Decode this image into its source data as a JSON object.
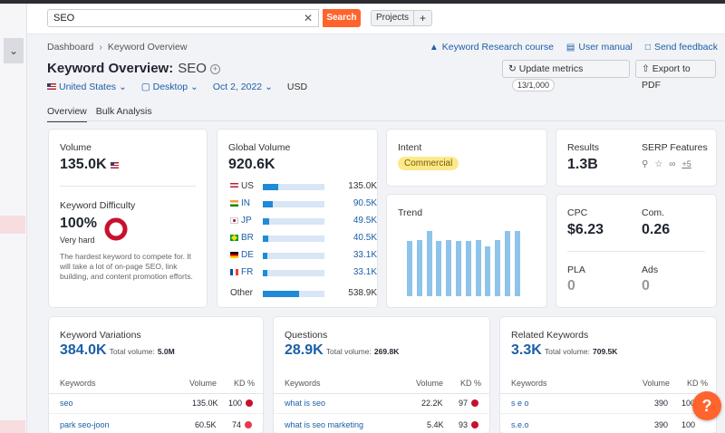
{
  "header": {
    "search_value": "SEO",
    "search_button": "Search",
    "projects_label": "Projects",
    "projects_add": "+"
  },
  "breadcrumb": {
    "root": "Dashboard",
    "current": "Keyword Overview"
  },
  "top_links": {
    "course": "Keyword Research course",
    "manual": "User manual",
    "feedback": "Send feedback"
  },
  "title": {
    "label": "Keyword Overview:",
    "keyword": "SEO"
  },
  "actions": {
    "update_label": "Update metrics",
    "update_count": "13/1,000",
    "export_label": "Export to PDF"
  },
  "filters": {
    "country": "United States",
    "device": "Desktop",
    "date": "Oct 2, 2022",
    "currency": "USD"
  },
  "tabs": [
    {
      "label": "Overview"
    },
    {
      "label": "Bulk Analysis"
    }
  ],
  "volume": {
    "label": "Volume",
    "value": "135.0K"
  },
  "difficulty": {
    "label": "Keyword Difficulty",
    "value": "100%",
    "level": "Very hard",
    "percent": 100,
    "description": "The hardest keyword to compete for. It will take a lot of on-page SEO, link building, and content promotion efforts."
  },
  "global_volume": {
    "label": "Global Volume",
    "value": "920.6K",
    "countries": [
      {
        "code": "US",
        "value": "135.0K",
        "share": 0.15
      },
      {
        "code": "IN",
        "value": "90.5K",
        "share": 0.1
      },
      {
        "code": "JP",
        "value": "49.5K",
        "share": 0.06
      },
      {
        "code": "BR",
        "value": "40.5K",
        "share": 0.05
      },
      {
        "code": "DE",
        "value": "33.1K",
        "share": 0.04
      },
      {
        "code": "FR",
        "value": "33.1K",
        "share": 0.04
      }
    ],
    "other_label": "Other",
    "other_value": "538.9K",
    "other_share": 0.59
  },
  "intent": {
    "label": "Intent",
    "value": "Commercial"
  },
  "trend": {
    "label": "Trend",
    "values": [
      0.8,
      0.82,
      0.95,
      0.8,
      0.82,
      0.8,
      0.8,
      0.82,
      0.72,
      0.82,
      0.95,
      0.95
    ]
  },
  "results": {
    "label": "Results",
    "value": "1.3B",
    "serp_label": "SERP Features",
    "serp_more": "+5"
  },
  "cpc": {
    "label": "CPC",
    "value": "$6.23"
  },
  "com": {
    "label": "Com.",
    "value": "0.26"
  },
  "pla": {
    "label": "PLA",
    "value": "0"
  },
  "ads": {
    "label": "Ads",
    "value": "0"
  },
  "total_volume_label": "Total volume:",
  "col_keywords": "Keywords",
  "col_volume": "Volume",
  "col_kd": "KD %",
  "variations": {
    "label": "Keyword Variations",
    "value": "384.0K",
    "total": "5.0M",
    "rows": [
      {
        "kw": "seo",
        "volume": "135.0K",
        "kd": "100"
      },
      {
        "kw": "park seo-joon",
        "volume": "60.5K",
        "kd": "74"
      }
    ]
  },
  "questions": {
    "label": "Questions",
    "value": "28.9K",
    "total": "269.8K",
    "rows": [
      {
        "kw": "what is seo",
        "volume": "22.2K",
        "kd": "97"
      },
      {
        "kw": "what is seo marketing",
        "volume": "5.4K",
        "kd": "93"
      }
    ]
  },
  "related": {
    "label": "Related Keywords",
    "value": "3.3K",
    "total": "709.5K",
    "rows": [
      {
        "kw": "s e o",
        "volume": "390",
        "kd": "100"
      },
      {
        "kw": "s.e.o",
        "volume": "390",
        "kd": "100"
      }
    ]
  },
  "help_label": "?",
  "colors": {
    "accent": "#ff642d",
    "link": "#1b5fa8",
    "kd_hard": "#c8102e",
    "trend_bar": "#8ec3ea"
  }
}
